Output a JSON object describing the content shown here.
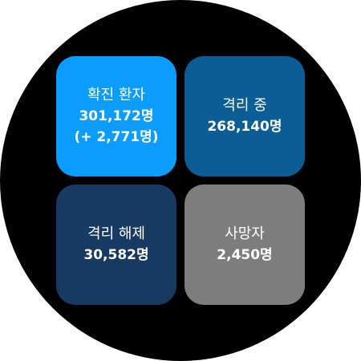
{
  "tiles": {
    "confirmed": {
      "label": "확진 환자",
      "value": "301,172명",
      "delta": "(+ 2,771명)",
      "color": "#0a9cff"
    },
    "isolating": {
      "label": "격리 중",
      "value": "268,140명",
      "color": "#0b5d96"
    },
    "released": {
      "label": "격리 해제",
      "value": "30,582명",
      "color": "#173a62"
    },
    "deaths": {
      "label": "사망자",
      "value": "2,450명",
      "color": "#7d7d7d"
    }
  }
}
